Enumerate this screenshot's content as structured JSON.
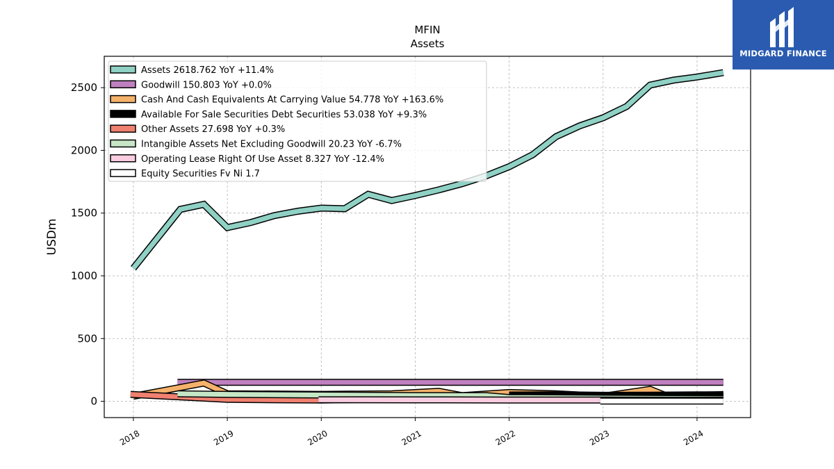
{
  "logo": {
    "text": "MIDGARD FINANCE",
    "background": "#2a5bb0"
  },
  "chart_data": {
    "type": "line",
    "title": "MFIN",
    "subtitle": "Assets",
    "ylabel": "USDm",
    "xlabel": "",
    "x_ticks": [
      "2018",
      "2019",
      "2020",
      "2021",
      "2022",
      "2023",
      "2024"
    ],
    "y_ticks": [
      "0",
      "500",
      "1000",
      "1500",
      "2000",
      "2500"
    ],
    "ylim": [
      -130,
      2750
    ],
    "xlim": [
      2017.69,
      2024.57
    ],
    "grid": true,
    "legend_position": "top-left",
    "series": [
      {
        "name": "Assets",
        "legend": "Assets  2618.762 YoY +11.4%",
        "color": "#8fd1c4",
        "x": [
          2018.0,
          2018.5,
          2018.75,
          2019.0,
          2019.25,
          2019.5,
          2019.75,
          2020.0,
          2020.25,
          2020.5,
          2020.75,
          2021.0,
          2021.25,
          2021.5,
          2021.75,
          2022.0,
          2022.25,
          2022.5,
          2022.75,
          2023.0,
          2023.25,
          2023.5,
          2023.75,
          2024.0,
          2024.28
        ],
        "y": [
          1060,
          1530,
          1570,
          1385,
          1425,
          1480,
          1515,
          1540,
          1535,
          1650,
          1600,
          1640,
          1685,
          1735,
          1795,
          1870,
          1965,
          2110,
          2195,
          2260,
          2350,
          2520,
          2560,
          2585,
          2620
        ]
      },
      {
        "name": "Goodwill",
        "legend": "Goodwill  150.803 YoY +0.0%",
        "color": "#bf80bf",
        "x": [
          2018.47,
          2024.28
        ],
        "y": [
          150.8,
          150.8
        ]
      },
      {
        "name": "Cash And Cash Equivalents At Carrying Value",
        "legend": "Cash And Cash Equivalents At Carrying Value  54.778 YoY +163.6%",
        "color": "#f5b26b",
        "x": [
          2018.0,
          2018.75,
          2019.0,
          2020.0,
          2020.75,
          2021.25,
          2021.5,
          2022.0,
          2022.5,
          2023.0,
          2023.5,
          2023.75,
          2024.28
        ],
        "y": [
          40,
          145,
          60,
          55,
          60,
          80,
          45,
          70,
          60,
          40,
          95,
          20,
          55
        ]
      },
      {
        "name": "Available For Sale Securities Debt Securities",
        "legend": "Available For Sale Securities Debt Securities  53.038 YoY +9.3%",
        "color": "#000000",
        "x": [
          2022.0,
          2022.5,
          2023.0,
          2023.5,
          2024.0,
          2024.28
        ],
        "y": [
          50,
          52,
          48,
          49,
          51,
          53
        ]
      },
      {
        "name": "Other Assets",
        "legend": "Other Assets  27.698 YoY +0.3%",
        "color": "#f08070",
        "x": [
          2017.97,
          2018.5,
          2019.0,
          2019.5,
          2020.0,
          2020.5,
          2021.0,
          2021.5,
          2022.0,
          2022.5,
          2023.0,
          2023.5,
          2024.0,
          2024.28
        ],
        "y": [
          55,
          35,
          15,
          12,
          10,
          15,
          20,
          25,
          30,
          27,
          26,
          27,
          27.5,
          27.7
        ]
      },
      {
        "name": "Intangible Assets Net Excluding Goodwill",
        "legend": "Intangible Assets Net Excluding Goodwill  20.23 YoY -6.7%",
        "color": "#c6e6c6",
        "x": [
          2018.47,
          2019.0,
          2020.0,
          2021.0,
          2021.75,
          2022.0,
          2023.0,
          2024.28
        ],
        "y": [
          60,
          55,
          50,
          45,
          45,
          30,
          25,
          20.2
        ]
      },
      {
        "name": "Operating Lease Right Of Use Asset",
        "legend": "Operating Lease Right Of Use Asset  8.327 YoY -12.4%",
        "color": "#f9cce0",
        "x": [
          2019.97,
          2021.0,
          2022.0,
          2023.0,
          2024.28
        ],
        "y": [
          12,
          11,
          10,
          9.5,
          8.3
        ]
      },
      {
        "name": "Equity Securities Fv Ni",
        "legend": "Equity Securities Fv Ni  1.7",
        "color": "#ffffff",
        "x": [
          2022.97,
          2024.28
        ],
        "y": [
          1.7,
          1.7
        ]
      }
    ]
  }
}
